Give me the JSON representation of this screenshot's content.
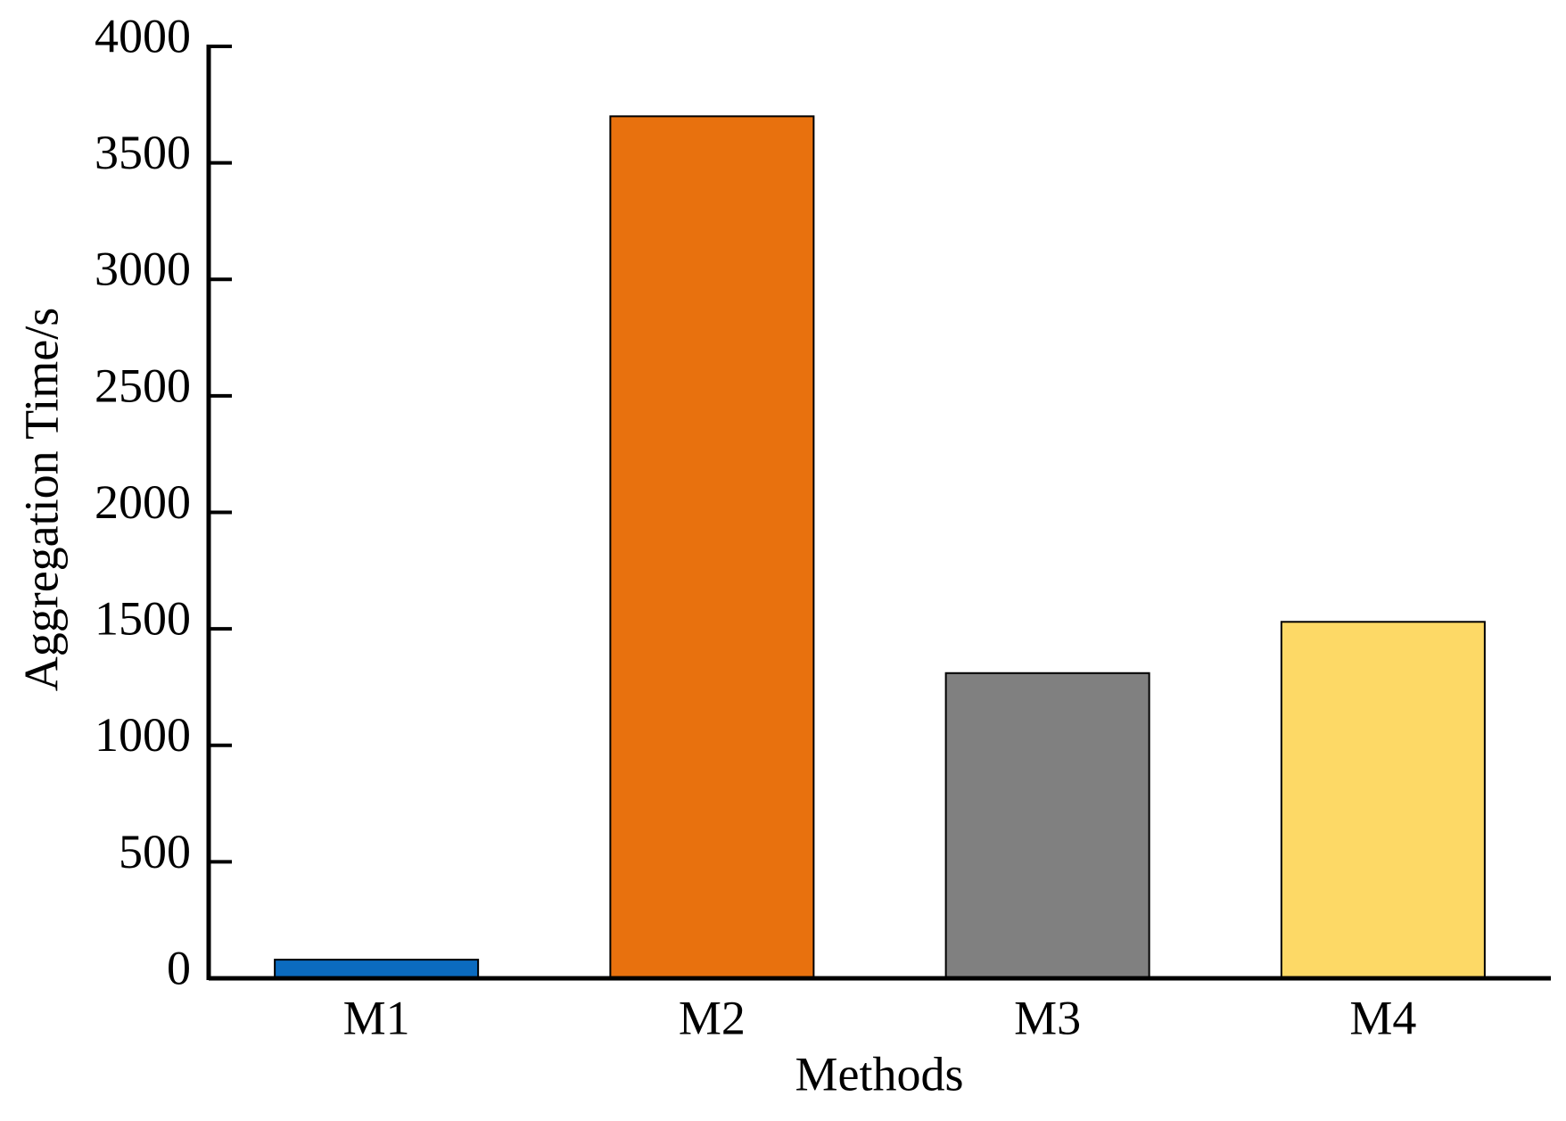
{
  "chart_data": {
    "type": "bar",
    "x_label": "Methods",
    "y_label": "Aggregation Time/s",
    "categories": [
      "M1",
      "M2",
      "M3",
      "M4"
    ],
    "values": [
      80,
      3700,
      1310,
      1530
    ],
    "colors": [
      "#0b6bbf",
      "#e8710e",
      "#808080",
      "#fdd966"
    ],
    "ylim": [
      0,
      4000
    ],
    "yticks": [
      0,
      500,
      1000,
      1500,
      2000,
      2500,
      3000,
      3500,
      4000
    ],
    "grid": false
  }
}
